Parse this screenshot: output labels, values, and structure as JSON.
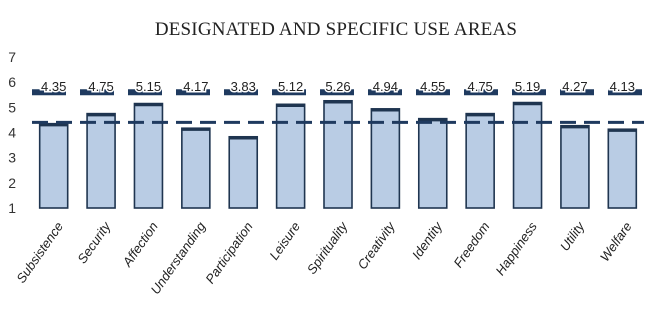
{
  "chart_data": {
    "type": "bar",
    "title": "DESIGNATED AND SPECIFIC USE AREAS",
    "categories": [
      "Subsistence",
      "Security",
      "Affection",
      "Understanding",
      "Participation",
      "Leisure",
      "Spirituality",
      "Creativity",
      "Identity",
      "Freedom",
      "Happiness",
      "Utility",
      "Welfare"
    ],
    "values": [
      4.35,
      4.75,
      5.15,
      4.17,
      3.83,
      5.12,
      5.26,
      4.94,
      4.55,
      4.75,
      5.19,
      4.27,
      4.13
    ],
    "data_labels": [
      "4.35",
      "4.75",
      "5.15",
      "4.17",
      "3.83",
      "5.12",
      "5.26",
      "4.94",
      "4.55",
      "4.75",
      "5.19",
      "4.27",
      "4.13"
    ],
    "ylim": [
      1,
      7
    ],
    "yticks": [
      "1",
      "2",
      "3",
      "4",
      "5",
      "6",
      "7"
    ],
    "reference_lines": [
      {
        "value": 5.6,
        "style": "thick dashed"
      },
      {
        "value": 4.4,
        "style": "dashed"
      }
    ],
    "grid": false,
    "legend": "none",
    "colors": {
      "bar_fill": "#b9cce4",
      "bar_stroke": "#1f3550",
      "reference_line": "#1f3a5f"
    }
  }
}
